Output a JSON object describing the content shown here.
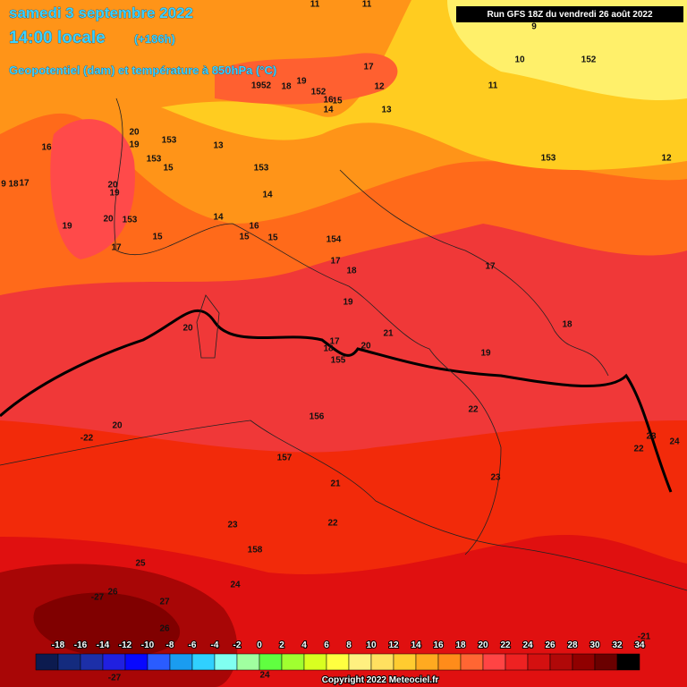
{
  "header": {
    "date": "samedi 3 septembre 2022",
    "time": "14:00 locale",
    "lead": "(+186h)",
    "field": "Geopotentiel (dam) et température à 850hPa (°C)",
    "run": "Run GFS 18Z du vendredi 26 août 2022"
  },
  "map_labels": [
    11,
    11,
    9,
    10,
    152,
    11,
    13,
    12,
    17,
    19,
    18,
    1952,
    152,
    16,
    15,
    14,
    16,
    13,
    153,
    153,
    15,
    153,
    153,
    12,
    14,
    14,
    16,
    15,
    15,
    154,
    17,
    18,
    17,
    19,
    18,
    20,
    21,
    20,
    17,
    18,
    155,
    19,
    22,
    156,
    20,
    -22,
    23,
    24,
    22,
    157,
    21,
    23,
    23,
    22,
    158,
    25,
    24,
    26,
    -27,
    27,
    26,
    15,
    19,
    20,
    153,
    17,
    20,
    19,
    9,
    18,
    17,
    20,
    19,
    -27,
    24,
    -21
  ],
  "legend": [
    {
      "value": -18,
      "color": "#0c1b4f"
    },
    {
      "value": -16,
      "color": "#142b7e"
    },
    {
      "value": -14,
      "color": "#1c2fa8"
    },
    {
      "value": -12,
      "color": "#2020e0"
    },
    {
      "value": -10,
      "color": "#0808ff"
    },
    {
      "value": -8,
      "color": "#2a5cff"
    },
    {
      "value": -6,
      "color": "#1a9cf0"
    },
    {
      "value": -4,
      "color": "#30d0ff"
    },
    {
      "value": -2,
      "color": "#80fff0"
    },
    {
      "value": 0,
      "color": "#a0ffa0"
    },
    {
      "value": 2,
      "color": "#60ff40"
    },
    {
      "value": 4,
      "color": "#a0ff30"
    },
    {
      "value": 6,
      "color": "#d8ff20"
    },
    {
      "value": 8,
      "color": "#ffff40"
    },
    {
      "value": 10,
      "color": "#fff080"
    },
    {
      "value": 12,
      "color": "#ffe060"
    },
    {
      "value": 14,
      "color": "#ffcc30"
    },
    {
      "value": 16,
      "color": "#ffaa20"
    },
    {
      "value": 18,
      "color": "#ff8c1a"
    },
    {
      "value": 20,
      "color": "#ff6633"
    },
    {
      "value": 22,
      "color": "#ff4444"
    },
    {
      "value": 24,
      "color": "#ee2222"
    },
    {
      "value": 26,
      "color": "#d41010"
    },
    {
      "value": 28,
      "color": "#b00808"
    },
    {
      "value": 30,
      "color": "#900000"
    },
    {
      "value": 32,
      "color": "#6a0000"
    },
    {
      "value": 34,
      "color": "#000000"
    }
  ],
  "copyright": "Copyright 2022 Meteociel.fr"
}
